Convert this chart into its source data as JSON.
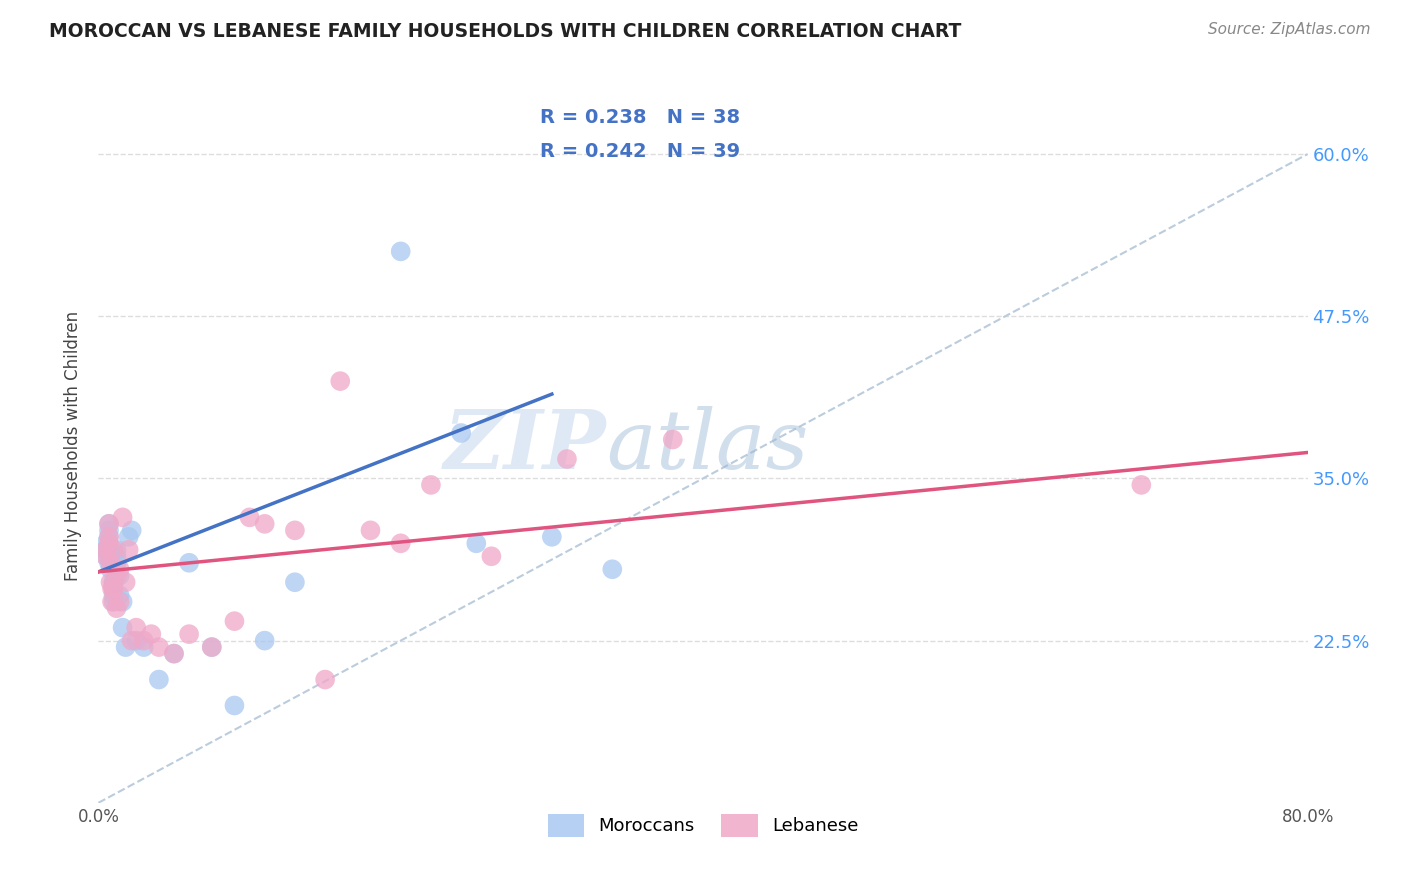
{
  "title": "MOROCCAN VS LEBANESE FAMILY HOUSEHOLDS WITH CHILDREN CORRELATION CHART",
  "source": "Source: ZipAtlas.com",
  "ylabel": "Family Households with Children",
  "xlim": [
    0.0,
    0.8
  ],
  "ylim": [
    0.1,
    0.65
  ],
  "xticks": [
    0.0,
    0.1,
    0.2,
    0.3,
    0.4,
    0.5,
    0.6,
    0.7,
    0.8
  ],
  "xticklabels": [
    "0.0%",
    "",
    "",
    "",
    "",
    "",
    "",
    "",
    "80.0%"
  ],
  "ytick_positions": [
    0.225,
    0.35,
    0.475,
    0.6
  ],
  "ytick_labels": [
    "22.5%",
    "35.0%",
    "47.5%",
    "60.0%"
  ],
  "watermark_zip": "ZIP",
  "watermark_atlas": "atlas",
  "moroccan_R": "0.238",
  "moroccan_N": "38",
  "lebanese_R": "0.242",
  "lebanese_N": "39",
  "moroccan_color": "#A8C8F0",
  "lebanese_color": "#F0A8C8",
  "moroccan_line_color": "#4472C4",
  "lebanese_line_color": "#E05580",
  "dashed_line_color": "#BBCCDD",
  "legend_text_color": "#4472C4",
  "legend_N_color": "#E05050",
  "background_color": "#FFFFFF",
  "grid_color": "#DDDDDD",
  "moroccan_x": [
    0.005,
    0.005,
    0.005,
    0.007,
    0.007,
    0.007,
    0.007,
    0.008,
    0.008,
    0.01,
    0.01,
    0.01,
    0.01,
    0.01,
    0.012,
    0.012,
    0.012,
    0.014,
    0.014,
    0.016,
    0.016,
    0.018,
    0.02,
    0.022,
    0.025,
    0.03,
    0.04,
    0.05,
    0.06,
    0.075,
    0.09,
    0.11,
    0.13,
    0.2,
    0.24,
    0.25,
    0.3,
    0.34
  ],
  "moroccan_y": [
    0.29,
    0.295,
    0.3,
    0.305,
    0.31,
    0.315,
    0.285,
    0.28,
    0.295,
    0.27,
    0.265,
    0.26,
    0.255,
    0.27,
    0.285,
    0.29,
    0.295,
    0.26,
    0.275,
    0.255,
    0.235,
    0.22,
    0.305,
    0.31,
    0.225,
    0.22,
    0.195,
    0.215,
    0.285,
    0.22,
    0.175,
    0.225,
    0.27,
    0.525,
    0.385,
    0.3,
    0.305,
    0.28
  ],
  "lebanese_x": [
    0.005,
    0.005,
    0.007,
    0.007,
    0.007,
    0.008,
    0.008,
    0.009,
    0.009,
    0.01,
    0.01,
    0.012,
    0.012,
    0.014,
    0.014,
    0.016,
    0.018,
    0.02,
    0.022,
    0.025,
    0.03,
    0.035,
    0.04,
    0.05,
    0.06,
    0.075,
    0.09,
    0.1,
    0.11,
    0.13,
    0.15,
    0.16,
    0.18,
    0.2,
    0.22,
    0.26,
    0.31,
    0.38,
    0.69
  ],
  "lebanese_y": [
    0.29,
    0.295,
    0.3,
    0.305,
    0.315,
    0.285,
    0.27,
    0.265,
    0.255,
    0.295,
    0.265,
    0.25,
    0.275,
    0.28,
    0.255,
    0.32,
    0.27,
    0.295,
    0.225,
    0.235,
    0.225,
    0.23,
    0.22,
    0.215,
    0.23,
    0.22,
    0.24,
    0.32,
    0.315,
    0.31,
    0.195,
    0.425,
    0.31,
    0.3,
    0.345,
    0.29,
    0.365,
    0.38,
    0.345
  ],
  "moroccan_line_x0": 0.0,
  "moroccan_line_x1": 0.3,
  "moroccan_line_y0": 0.278,
  "moroccan_line_y1": 0.415,
  "lebanese_line_x0": 0.0,
  "lebanese_line_x1": 0.8,
  "lebanese_line_y0": 0.278,
  "lebanese_line_y1": 0.37,
  "dash_line_x0": 0.0,
  "dash_line_x1": 0.8,
  "dash_line_y0": 0.1,
  "dash_line_y1": 0.6
}
